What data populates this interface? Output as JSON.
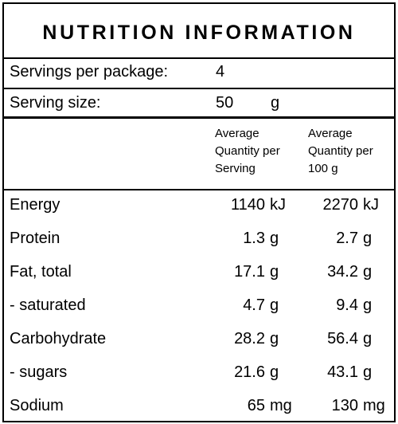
{
  "title": "NUTRITION INFORMATION",
  "servings": {
    "label": "Servings per package:",
    "value": 4
  },
  "serving_size": {
    "label": "Serving size:",
    "value": 50,
    "unit": "g"
  },
  "columns": [
    "Average Quantity per Serving",
    "Average Quantity per 100 g"
  ],
  "rows": [
    {
      "name": "Energy",
      "per_serving": 1140,
      "per_100g": 2270,
      "unit": "kJ"
    },
    {
      "name": "Protein",
      "per_serving": 1.3,
      "per_100g": 2.7,
      "unit": "g"
    },
    {
      "name": "Fat, total",
      "per_serving": 17.1,
      "per_100g": 34.2,
      "unit": "g"
    },
    {
      "name": "- saturated",
      "per_serving": 4.7,
      "per_100g": 9.4,
      "unit": "g"
    },
    {
      "name": "Carbohydrate",
      "per_serving": 28.2,
      "per_100g": 56.4,
      "unit": "g"
    },
    {
      "name": "- sugars",
      "per_serving": 21.6,
      "per_100g": 43.1,
      "unit": "g"
    },
    {
      "name": "Sodium",
      "per_serving": 65,
      "per_100g": 130,
      "unit": "mg"
    }
  ]
}
